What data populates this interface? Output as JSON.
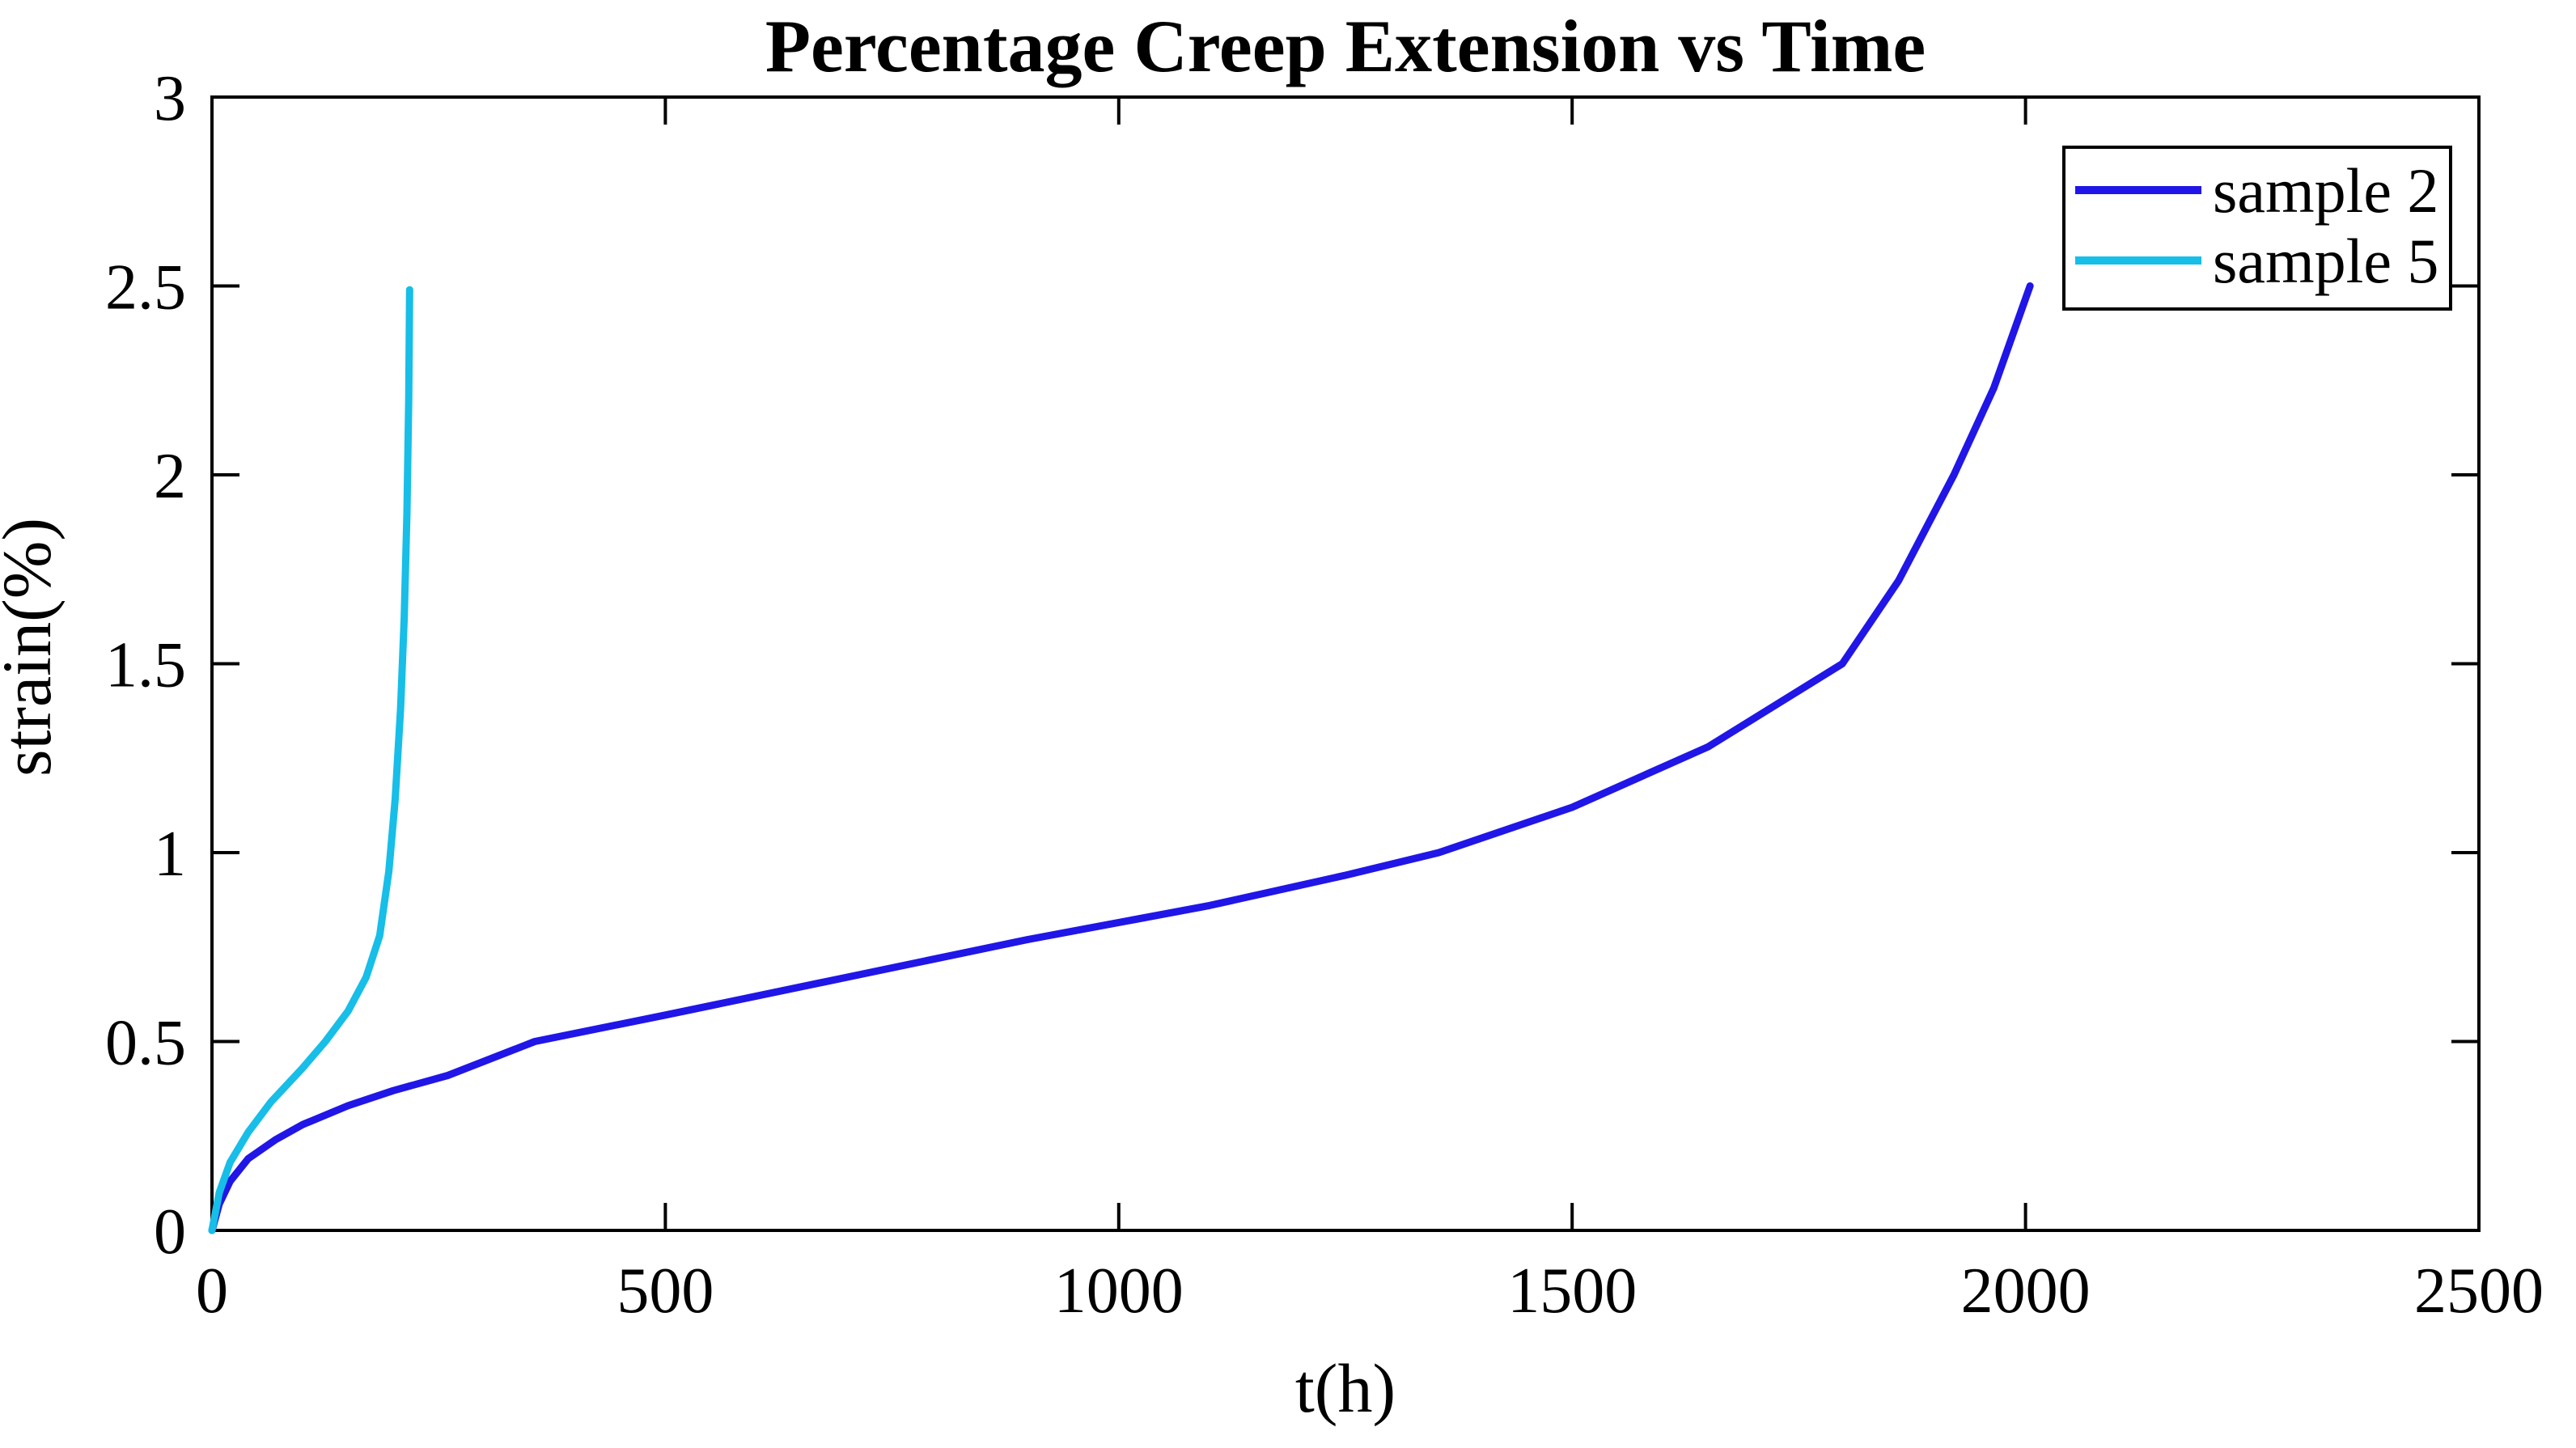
{
  "figure": {
    "background": "#ffffff",
    "frame_color": "#000000"
  },
  "chart_data": {
    "type": "line",
    "title": "Percentage Creep Extension vs Time",
    "xlabel": "t(h)",
    "ylabel": "strain(%)",
    "xlim": [
      0,
      2500
    ],
    "ylim": [
      0,
      3
    ],
    "x_ticks": [
      0,
      500,
      1000,
      1500,
      2000,
      2500
    ],
    "y_ticks": [
      0,
      0.5,
      1,
      1.5,
      2,
      2.5,
      3
    ],
    "grid": false,
    "legend_position": "top-right",
    "series": [
      {
        "name": "sample 2",
        "color": "#2016e8",
        "points": [
          [
            0,
            0
          ],
          [
            8,
            0.07
          ],
          [
            20,
            0.13
          ],
          [
            40,
            0.19
          ],
          [
            70,
            0.24
          ],
          [
            100,
            0.28
          ],
          [
            150,
            0.33
          ],
          [
            200,
            0.37
          ],
          [
            260,
            0.41
          ],
          [
            356,
            0.5
          ],
          [
            500,
            0.57
          ],
          [
            700,
            0.67
          ],
          [
            900,
            0.77
          ],
          [
            1100,
            0.86
          ],
          [
            1250,
            0.94
          ],
          [
            1353,
            1.0
          ],
          [
            1500,
            1.12
          ],
          [
            1650,
            1.28
          ],
          [
            1798,
            1.5
          ],
          [
            1860,
            1.72
          ],
          [
            1921,
            2.0
          ],
          [
            1965,
            2.23
          ],
          [
            2005,
            2.5
          ]
        ]
      },
      {
        "name": "sample 5",
        "color": "#16bee8",
        "points": [
          [
            0,
            0
          ],
          [
            8,
            0.1
          ],
          [
            20,
            0.18
          ],
          [
            40,
            0.26
          ],
          [
            65,
            0.34
          ],
          [
            100,
            0.43
          ],
          [
            125,
            0.5
          ],
          [
            150,
            0.58
          ],
          [
            170,
            0.67
          ],
          [
            185,
            0.78
          ],
          [
            195,
            0.95
          ],
          [
            202,
            1.14
          ],
          [
            208,
            1.38
          ],
          [
            212,
            1.62
          ],
          [
            215,
            1.9
          ],
          [
            217,
            2.2
          ],
          [
            218,
            2.49
          ]
        ]
      }
    ]
  }
}
